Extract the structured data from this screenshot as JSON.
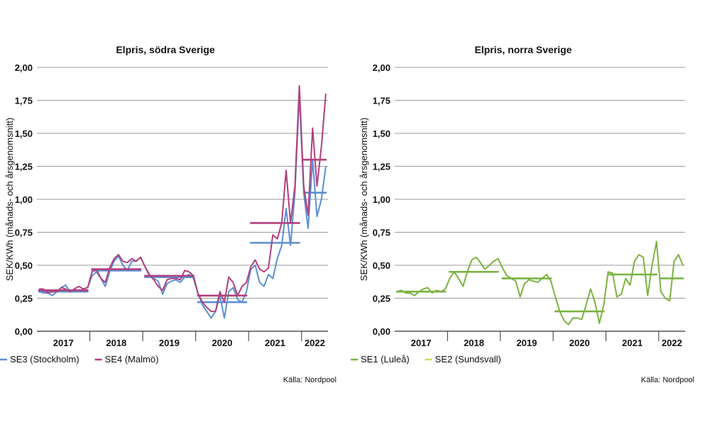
{
  "chart_data": [
    {
      "type": "line",
      "title": "Elpris, södra Sverige",
      "ylabel": "SEK/KWh (månads- och årsgenomsnitt)",
      "ylim": [
        0,
        2
      ],
      "yticks": [
        "0,00",
        "0,25",
        "0,50",
        "0,75",
        "1,00",
        "1,25",
        "1,50",
        "1,75",
        "2,00"
      ],
      "xticks": [
        "2017",
        "2018",
        "2019",
        "2020",
        "2021",
        "2022"
      ],
      "source": "Källa: Nordpool",
      "grid": true,
      "legend_position": "bottom",
      "series": [
        {
          "name": "SE3 (Stockholm)",
          "color": "#5b8fd4",
          "monthly": [
            0.3,
            0.29,
            0.29,
            0.27,
            0.3,
            0.33,
            0.35,
            0.3,
            0.31,
            0.3,
            0.32,
            0.33,
            0.42,
            0.45,
            0.4,
            0.34,
            0.45,
            0.53,
            0.57,
            0.5,
            0.46,
            0.53,
            0.53,
            0.56,
            0.49,
            0.42,
            0.4,
            0.38,
            0.28,
            0.36,
            0.38,
            0.39,
            0.37,
            0.41,
            0.43,
            0.4,
            0.29,
            0.2,
            0.15,
            0.1,
            0.15,
            0.27,
            0.1,
            0.3,
            0.33,
            0.24,
            0.22,
            0.3,
            0.47,
            0.5,
            0.37,
            0.34,
            0.43,
            0.4,
            0.55,
            0.65,
            0.93,
            0.65,
            1.05,
            1.8,
            1.05,
            0.78,
            1.3,
            0.87,
            1.0,
            1.25
          ],
          "yearly": [
            0.3,
            0.46,
            0.41,
            0.22,
            0.67,
            1.05
          ]
        },
        {
          "name": "SE4 (Malmö)",
          "color": "#b0407f",
          "monthly": [
            0.32,
            0.32,
            0.29,
            0.3,
            0.3,
            0.33,
            0.32,
            0.3,
            0.32,
            0.34,
            0.32,
            0.33,
            0.45,
            0.47,
            0.4,
            0.37,
            0.48,
            0.55,
            0.58,
            0.53,
            0.52,
            0.55,
            0.53,
            0.56,
            0.49,
            0.43,
            0.39,
            0.34,
            0.31,
            0.39,
            0.4,
            0.4,
            0.39,
            0.46,
            0.45,
            0.42,
            0.29,
            0.22,
            0.18,
            0.15,
            0.15,
            0.3,
            0.22,
            0.41,
            0.37,
            0.27,
            0.34,
            0.37,
            0.49,
            0.54,
            0.47,
            0.45,
            0.48,
            0.73,
            0.7,
            0.82,
            1.22,
            0.82,
            1.1,
            1.86,
            1.1,
            0.88,
            1.54,
            1.1,
            1.4,
            1.8
          ],
          "yearly": [
            0.31,
            0.47,
            0.42,
            0.27,
            0.82,
            1.3
          ]
        }
      ]
    },
    {
      "type": "line",
      "title": "Elpris, norra Sverige",
      "ylabel": "SEK/KWh (månads- och årsgenomsnitt)",
      "ylim": [
        0,
        2
      ],
      "yticks": [
        "0,00",
        "0,25",
        "0,50",
        "0,75",
        "1,00",
        "1,25",
        "1,50",
        "1,75",
        "2,00"
      ],
      "xticks": [
        "2017",
        "2018",
        "2019",
        "2020",
        "2021",
        "2022"
      ],
      "source": "Källa: Nordpool",
      "grid": true,
      "legend_position": "bottom",
      "series": [
        {
          "name": "SE1 (Luleå)",
          "color": "#7cb342",
          "monthly": [
            0.3,
            0.31,
            0.29,
            0.29,
            0.27,
            0.3,
            0.32,
            0.33,
            0.29,
            0.31,
            0.3,
            0.32,
            0.4,
            0.45,
            0.4,
            0.34,
            0.45,
            0.54,
            0.56,
            0.52,
            0.47,
            0.5,
            0.53,
            0.55,
            0.48,
            0.42,
            0.4,
            0.38,
            0.26,
            0.36,
            0.39,
            0.38,
            0.37,
            0.4,
            0.43,
            0.38,
            0.26,
            0.15,
            0.08,
            0.05,
            0.1,
            0.1,
            0.09,
            0.2,
            0.32,
            0.22,
            0.06,
            0.2,
            0.45,
            0.44,
            0.26,
            0.28,
            0.4,
            0.35,
            0.53,
            0.58,
            0.56,
            0.27,
            0.5,
            0.68,
            0.3,
            0.25,
            0.23,
            0.53,
            0.58,
            0.5
          ],
          "yearly": [
            0.3,
            0.45,
            0.4,
            0.15,
            0.43,
            0.4
          ]
        },
        {
          "name": "SE2 (Sundsvall)",
          "color": "#d8d860",
          "monthly": [],
          "yearly": []
        }
      ]
    }
  ]
}
